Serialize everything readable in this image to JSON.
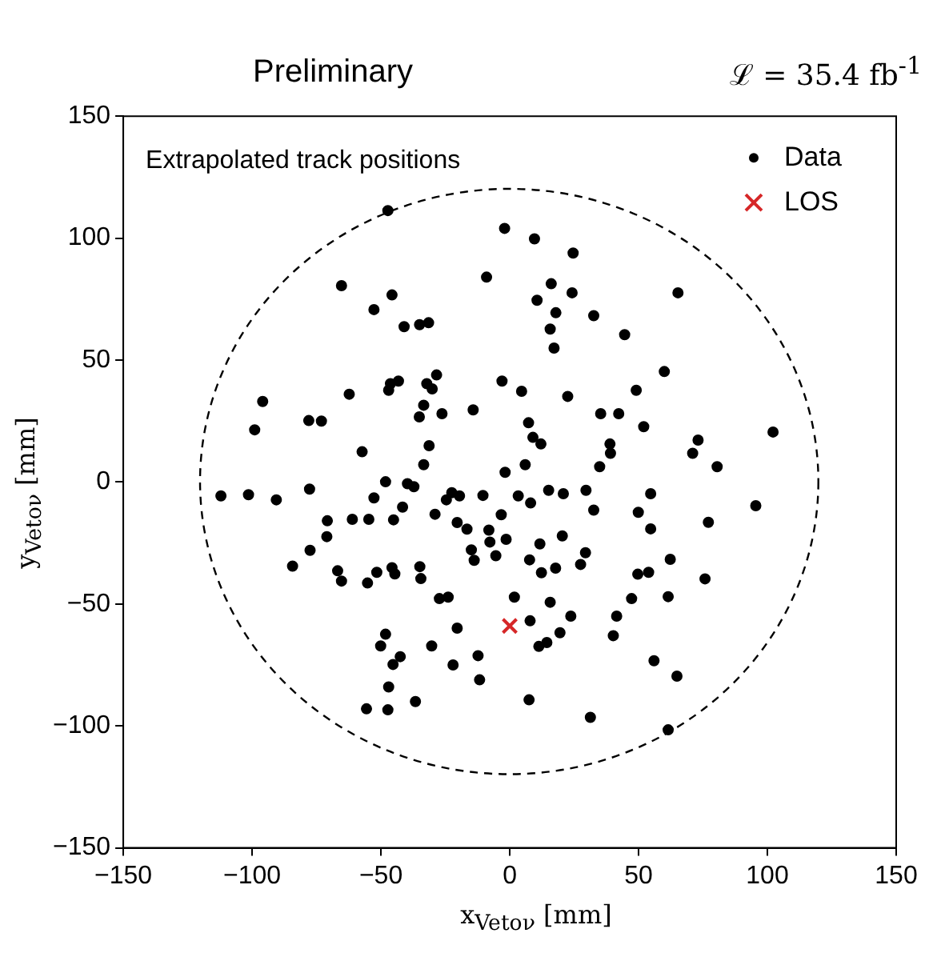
{
  "chart_data": {
    "type": "scatter",
    "title": "Preliminary",
    "subtitle": "ℒ = 35.4 fb$^{-1}$",
    "xlabel": "x$_{Vetoν}$ [mm]",
    "ylabel": "y$_{Vetoν}$ [mm]",
    "annotations": [
      "Extrapolated track positions"
    ],
    "xlim": [
      -150,
      150
    ],
    "ylim": [
      -150,
      150
    ],
    "xticks": [
      -150,
      -100,
      -50,
      0,
      50,
      100,
      150
    ],
    "yticks": [
      -150,
      -100,
      -50,
      0,
      50,
      100,
      150
    ],
    "legend": "top right",
    "series": [
      {
        "name": "Data",
        "color": "#000000",
        "marker": "circle",
        "x": [
          -47.3,
          -2,
          9.6,
          -65.3,
          -9,
          -45.7,
          -52.7,
          10.6,
          -41,
          -35,
          -31.5,
          24.6,
          16.1,
          24.2,
          65.3,
          17.9,
          32.6,
          15.7,
          44.6,
          17.2,
          -28.4,
          -43.2,
          -46.3,
          -47,
          -32.2,
          -30.1,
          -3,
          4.6,
          -95.9,
          -62.3,
          -33.4,
          -35.1,
          -26.3,
          -14.2,
          -78,
          -73.1,
          -99,
          7.3,
          9,
          12.1,
          -57.3,
          -31.3,
          -33.4,
          -1.8,
          6,
          -48.2,
          -39.7,
          -37.2,
          -112.1,
          -101.4,
          -90.6,
          -77.7,
          -52.7,
          -22.5,
          -24.6,
          -19.5,
          -10.4,
          3.3,
          8.1,
          -41.6,
          -29,
          -3.3,
          -70.8,
          -61.1,
          -54.7,
          -45.1,
          -20.4,
          -16.6,
          -8.1,
          -71,
          -7.7,
          -1.4,
          11.7,
          -77.5,
          -14.9,
          -13.8,
          -5.4,
          7.7,
          -84.3,
          -66.8,
          -65.3,
          -51.6,
          -45.7,
          -44.6,
          -34.9,
          -34.5,
          -55.2,
          12.3,
          -27.3,
          -23.9,
          1.8,
          60,
          22.5,
          49.1,
          35.3,
          42.3,
          52,
          38.9,
          39.1,
          73.1,
          71,
          102.2,
          34.9,
          80.5,
          15.1,
          20.8,
          29.6,
          54.7,
          32.6,
          49.9,
          95.5,
          54.7,
          77.1,
          20.4,
          29.4,
          62.3,
          17.8,
          27.5,
          49.7,
          53.9,
          75.8,
          47.3,
          61.5,
          15.7,
          7.9,
          11.3,
          -48.2,
          -50.1,
          -42.5,
          -45.3,
          -30.3,
          -20.4,
          -22,
          -12.3,
          -11.7,
          -47,
          -55.6,
          -47.3,
          -36.6,
          7.5,
          23.7,
          41.5,
          19.5,
          14.4,
          40.2,
          56,
          64.9,
          31.3,
          61.5
        ],
        "values": [
          111.3,
          104,
          99.7,
          80.5,
          84,
          76.7,
          70.7,
          74.5,
          63.7,
          64.5,
          65.3,
          93.9,
          81.3,
          77.6,
          77.6,
          69.4,
          68.2,
          62.7,
          60.4,
          54.9,
          43.9,
          41.4,
          40.3,
          37.6,
          40.3,
          38.2,
          41.4,
          37.2,
          33,
          36,
          31.5,
          26.7,
          28,
          29.6,
          25.2,
          25,
          21.4,
          24.3,
          18.3,
          15.6,
          12.4,
          14.9,
          7.1,
          4,
          7.1,
          0.1,
          -0.7,
          -1.9,
          -5.7,
          -5.2,
          -7.3,
          -2.9,
          -6.5,
          -4.4,
          -7.3,
          -5.7,
          -5.5,
          -5.7,
          -8.6,
          -10.3,
          -13.2,
          -13.4,
          -15.9,
          -15.3,
          -15.3,
          -15.5,
          -16.6,
          -19.3,
          -19.7,
          -22.4,
          -24.6,
          -23.5,
          -25.4,
          -28,
          -27.8,
          -32.1,
          -30.2,
          -31.9,
          -34.5,
          -36.4,
          -40.6,
          -37,
          -35.1,
          -37.7,
          -34.7,
          -39.6,
          -41.4,
          -37.2,
          -47.8,
          -47.2,
          -47.2,
          45.3,
          35.1,
          37.6,
          28,
          28,
          22.7,
          15.6,
          11.8,
          17.2,
          11.8,
          20.5,
          6.3,
          6.3,
          -3.4,
          -4.8,
          -3.4,
          -4.8,
          -11.5,
          -12.4,
          -9.7,
          -19.2,
          -16.5,
          -22.1,
          -29,
          -31.7,
          -35.3,
          -33.8,
          -37.8,
          -37,
          -39.7,
          -47.8,
          -47,
          -49.3,
          -56.9,
          -67.4,
          -62.4,
          -67.2,
          -71.6,
          -74.8,
          -67.2,
          -59.9,
          -75,
          -71.2,
          -81.1,
          -84,
          -93,
          -93.4,
          -90,
          -89.3,
          -55,
          -55,
          -61.8,
          -65.8,
          -63,
          -73.3,
          -79.6,
          -96.5,
          -101.6
        ]
      },
      {
        "name": "LOS",
        "color": "#d62728",
        "marker": "cross",
        "x": [
          0
        ],
        "values": [
          -59
        ]
      }
    ]
  }
}
